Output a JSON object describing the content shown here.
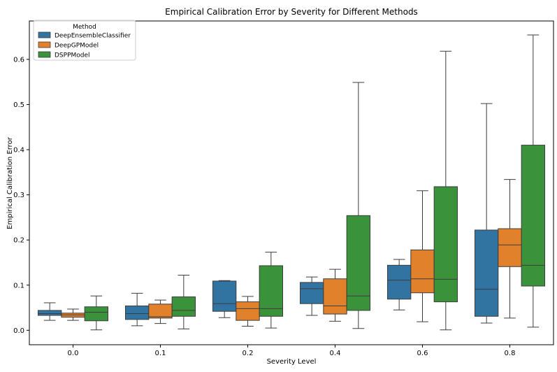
{
  "colors": {
    "DeepEnsembleClassifier": "#3274a1",
    "DeepGPModel": "#e1812c",
    "DSPPModel": "#3a923a",
    "edge": "#3d3d3d"
  },
  "chart_data": {
    "type": "boxplot",
    "title": "Empirical Calibration Error by Severity for Different Methods",
    "xlabel": "Severity Level",
    "ylabel": "Empirical Calibration Error",
    "ylim": [
      -0.032,
      0.685
    ],
    "yticks": [
      0.0,
      0.1,
      0.2,
      0.3,
      0.4,
      0.5,
      0.6
    ],
    "ytick_labels": [
      "0.0",
      "0.1",
      "0.2",
      "0.3",
      "0.4",
      "0.5",
      "0.6"
    ],
    "categories": [
      "0.0",
      "0.1",
      "0.2",
      "0.4",
      "0.6",
      "0.8"
    ],
    "legend": {
      "title": "Method",
      "location": "top-left"
    },
    "series": [
      {
        "name": "DeepEnsembleClassifier",
        "boxes": [
          {
            "whislo": 0.022,
            "q1": 0.033,
            "med": 0.037,
            "q3": 0.044,
            "whishi": 0.061
          },
          {
            "whislo": 0.01,
            "q1": 0.024,
            "med": 0.037,
            "q3": 0.054,
            "whishi": 0.082
          },
          {
            "whislo": 0.028,
            "q1": 0.042,
            "med": 0.059,
            "q3": 0.109,
            "whishi": 0.11
          },
          {
            "whislo": 0.033,
            "q1": 0.059,
            "med": 0.092,
            "q3": 0.106,
            "whishi": 0.118
          },
          {
            "whislo": 0.045,
            "q1": 0.069,
            "med": 0.111,
            "q3": 0.144,
            "whishi": 0.157
          },
          {
            "whislo": 0.016,
            "q1": 0.031,
            "med": 0.091,
            "q3": 0.222,
            "whishi": 0.502
          }
        ]
      },
      {
        "name": "DeepGPModel",
        "boxes": [
          {
            "whislo": 0.022,
            "q1": 0.029,
            "med": 0.034,
            "q3": 0.038,
            "whishi": 0.047
          },
          {
            "whislo": 0.015,
            "q1": 0.027,
            "med": 0.03,
            "q3": 0.058,
            "whishi": 0.067
          },
          {
            "whislo": 0.009,
            "q1": 0.022,
            "med": 0.048,
            "q3": 0.063,
            "whishi": 0.075
          },
          {
            "whislo": 0.02,
            "q1": 0.036,
            "med": 0.054,
            "q3": 0.114,
            "whishi": 0.135
          },
          {
            "whislo": 0.019,
            "q1": 0.083,
            "med": 0.114,
            "q3": 0.178,
            "whishi": 0.309
          },
          {
            "whislo": 0.027,
            "q1": 0.141,
            "med": 0.189,
            "q3": 0.225,
            "whishi": 0.334
          }
        ]
      },
      {
        "name": "DSPPModel",
        "boxes": [
          {
            "whislo": 0.001,
            "q1": 0.021,
            "med": 0.04,
            "q3": 0.052,
            "whishi": 0.076
          },
          {
            "whislo": 0.003,
            "q1": 0.031,
            "med": 0.044,
            "q3": 0.074,
            "whishi": 0.122
          },
          {
            "whislo": 0.005,
            "q1": 0.031,
            "med": 0.048,
            "q3": 0.143,
            "whishi": 0.173
          },
          {
            "whislo": 0.004,
            "q1": 0.044,
            "med": 0.076,
            "q3": 0.254,
            "whishi": 0.549
          },
          {
            "whislo": 0.001,
            "q1": 0.063,
            "med": 0.113,
            "q3": 0.318,
            "whishi": 0.618
          },
          {
            "whislo": 0.007,
            "q1": 0.098,
            "med": 0.144,
            "q3": 0.41,
            "whishi": 0.654
          }
        ]
      }
    ]
  }
}
